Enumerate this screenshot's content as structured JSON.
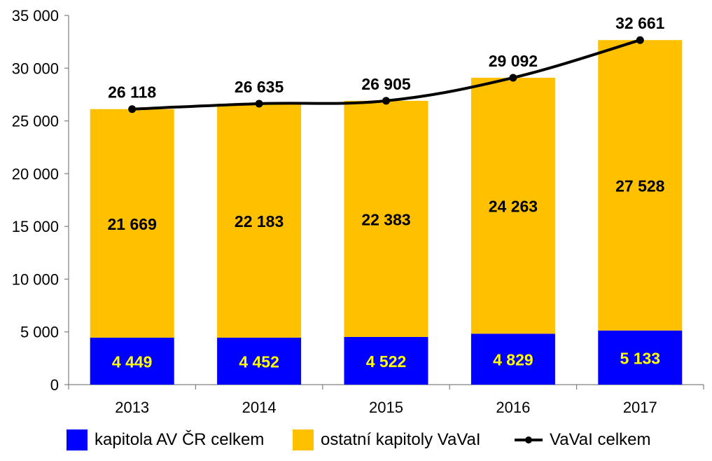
{
  "chart_data": {
    "type": "bar",
    "stacked": true,
    "categories": [
      "2013",
      "2014",
      "2015",
      "2016",
      "2017"
    ],
    "series": [
      {
        "name": "kapitola AV ČR celkem",
        "type": "bar",
        "color": "#0000ff",
        "label_color": "#ffff00",
        "values": [
          4449,
          4452,
          4522,
          4829,
          5133
        ],
        "labels": [
          "4 449",
          "4 452",
          "4 522",
          "4 829",
          "5 133"
        ]
      },
      {
        "name": "ostatní kapitoly VaVaI",
        "type": "bar",
        "color": "#ffc000",
        "label_color": "#000000",
        "values": [
          21669,
          22183,
          22383,
          24263,
          27528
        ],
        "labels": [
          "21 669",
          "22 183",
          "22 383",
          "24 263",
          "27 528"
        ]
      },
      {
        "name": "VaVaI celkem",
        "type": "line",
        "color": "#000000",
        "label_color": "#000000",
        "values": [
          26118,
          26635,
          26905,
          29092,
          32661
        ],
        "labels": [
          "26 118",
          "26 635",
          "26 905",
          "29 092",
          "32 661"
        ]
      }
    ],
    "ylim": [
      0,
      35000
    ],
    "yticks": [
      0,
      5000,
      10000,
      15000,
      20000,
      25000,
      30000,
      35000
    ],
    "ytick_labels": [
      "0",
      "5 000",
      "10 000",
      "15 000",
      "20 000",
      "25 000",
      "30 000",
      "35 000"
    ],
    "grid": false,
    "legend_position": "bottom",
    "title": "",
    "xlabel": "",
    "ylabel": ""
  }
}
